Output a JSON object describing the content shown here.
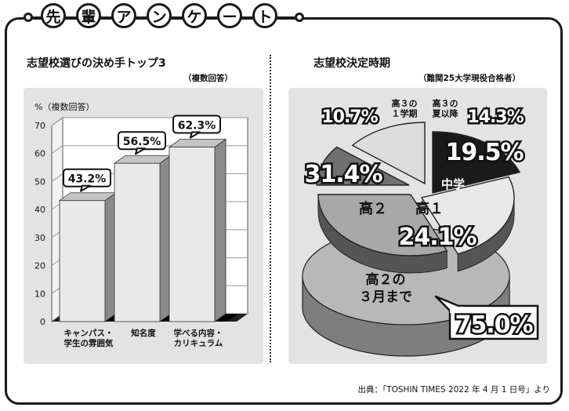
{
  "header": {
    "chars": [
      "先",
      "輩",
      "ア",
      "ン",
      "ケ",
      "ー",
      "ト"
    ]
  },
  "left": {
    "title": "志望校選びの決め手トップ3",
    "note": "（複数回答）"
  },
  "right": {
    "title": "志望校決定時期",
    "note": "（難関25大学現役合格者）"
  },
  "source": "出典：「TOSHIN TIMES 2022 年 4 月 1 日号」より",
  "chart_data": [
    {
      "type": "bar",
      "unit_label": "%（複数回答）",
      "categories": [
        [
          "キャンパス・",
          "学生の雰囲気"
        ],
        [
          "知名度"
        ],
        [
          "学べる内容・",
          "カリキュラム"
        ]
      ],
      "values": [
        43.2,
        56.5,
        62.3
      ],
      "value_labels": [
        "43.2%",
        "56.5%",
        "62.3%"
      ],
      "ylim": [
        0,
        70
      ],
      "yticks": [
        0,
        10,
        20,
        30,
        40,
        50,
        60,
        70
      ],
      "grid": true
    },
    {
      "type": "pie",
      "slices": [
        {
          "label": [
            "中学"
          ],
          "value": 19.5,
          "value_label": "19.5%",
          "color": "#1a1a1a"
        },
        {
          "label": [
            "高１"
          ],
          "value": 24.1,
          "value_label": "24.1%",
          "color": "#e8e8e8"
        },
        {
          "label": [
            "高２"
          ],
          "value": 31.4,
          "value_label": "31.4%",
          "color": "#a8a8a8"
        },
        {
          "label": [
            "高３の",
            "１学期"
          ],
          "value": 10.7,
          "value_label": "10.7%",
          "color": "#707070"
        },
        {
          "label": [
            "高３の",
            "夏以降"
          ],
          "value": 14.3,
          "value_label": "14.3%",
          "color": "#dcdcdc"
        }
      ],
      "cumulative": {
        "label": [
          "高２の",
          "３月まで"
        ],
        "value": 75.0,
        "value_label": "75.0%"
      }
    }
  ]
}
